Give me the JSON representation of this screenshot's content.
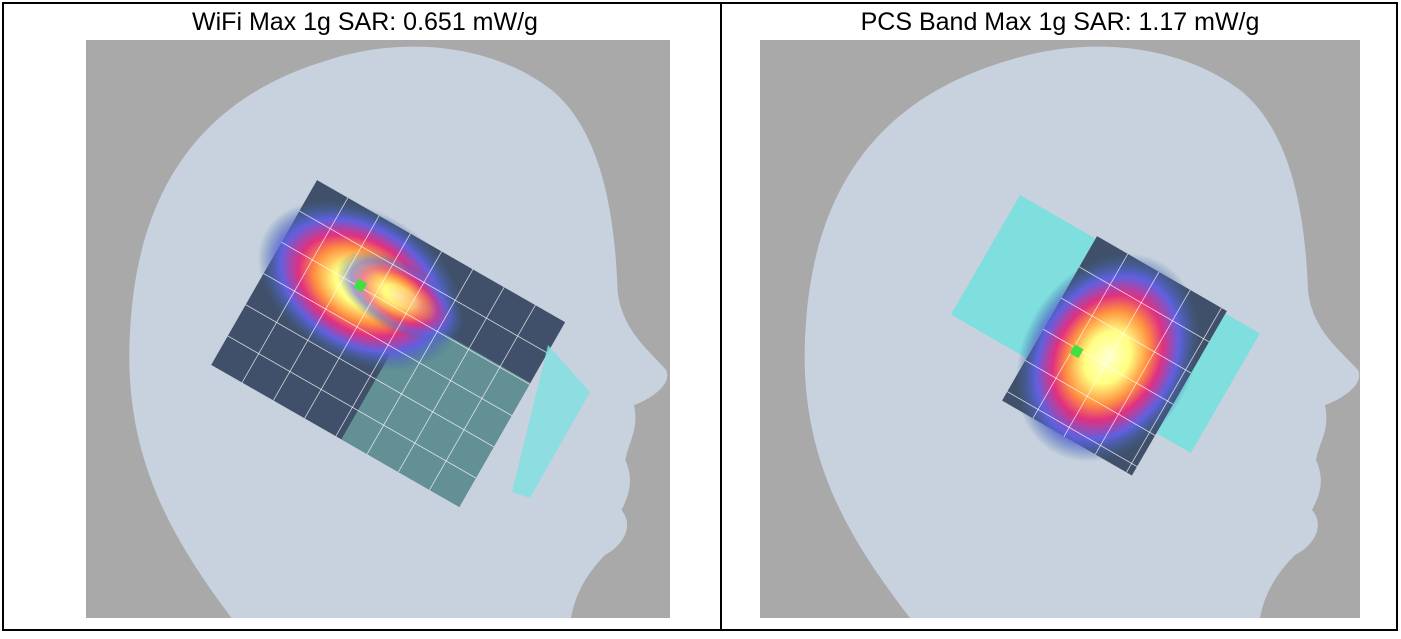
{
  "cells": [
    {
      "caption": "WiFi Max 1g SAR: 0.651 mW/g"
    },
    {
      "caption": "PCS Band Max 1g SAR: 1.17 mW/g"
    }
  ]
}
